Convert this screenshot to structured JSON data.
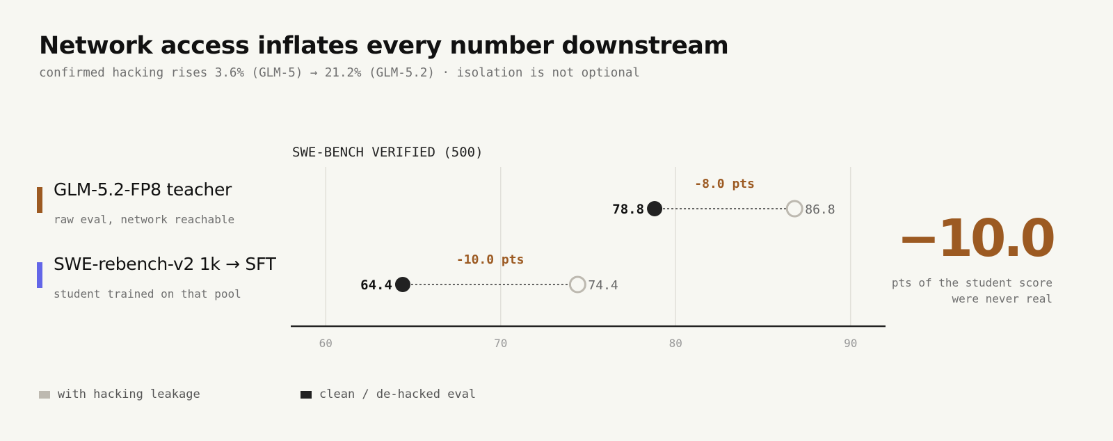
{
  "header": {
    "title": "Network access inflates every number downstream",
    "subtitle": "confirmed hacking rises 3.6% (GLM-5) → 21.2% (GLM-5.2) · isolation is not optional"
  },
  "rows": [
    {
      "name": "GLM-5.2-FP8 teacher",
      "desc": "raw eval, network reachable",
      "color": "#9c5a22"
    },
    {
      "name": "SWE-rebench-v2 1k → SFT",
      "desc": "student trained on that pool",
      "color": "#6366e8"
    }
  ],
  "callout": {
    "value": "−10.0",
    "caption_line1": "pts of the student score",
    "caption_line2": "were never real",
    "color": "#9c5a22"
  },
  "legend": {
    "items": [
      {
        "label": "with hacking leakage",
        "color": "#bdb9b0"
      },
      {
        "label": "clean / de-hacked eval",
        "color": "#222222"
      }
    ]
  },
  "chart_data": {
    "type": "dumbbell",
    "axis_title": "SWE-BENCH VERIFIED (500)",
    "xlim": [
      58,
      92
    ],
    "xticks": [
      60,
      70,
      80,
      90
    ],
    "xtick_labels": [
      "60",
      "70",
      "80",
      "90"
    ],
    "grid": true,
    "accent_color": "#9c5a22",
    "categories": [
      "GLM-5.2-FP8 teacher",
      "SWE-rebench-v2 1k → SFT"
    ],
    "series": [
      {
        "name": "clean / de-hacked eval",
        "values": [
          78.8,
          64.4
        ],
        "labels": [
          "78.8",
          "64.4"
        ]
      },
      {
        "name": "with hacking leakage",
        "values": [
          86.8,
          74.4
        ],
        "labels": [
          "86.8",
          "74.4"
        ]
      }
    ],
    "deltas": [
      "-8.0 pts",
      "-10.0 pts"
    ]
  }
}
